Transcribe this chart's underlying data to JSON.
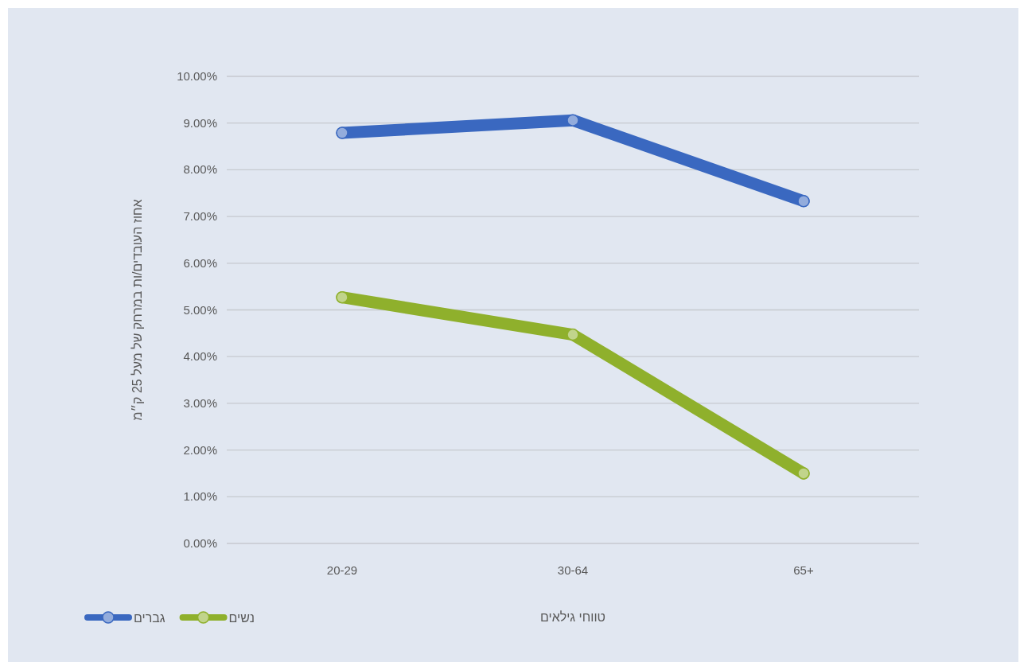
{
  "chart_data": {
    "type": "line",
    "xlabel": "טווחי גילאים",
    "ylabel": "אחוז העובדים/ות במרחק של מעל 25 ק״מ",
    "categories": [
      "20-29",
      "30-64",
      "65+"
    ],
    "series": [
      {
        "name": "גברים",
        "color": "#3a68c0",
        "values": [
          8.79,
          9.06,
          7.33
        ]
      },
      {
        "name": "נשים",
        "color": "#8fb02c",
        "values": [
          5.27,
          4.47,
          1.5
        ]
      }
    ],
    "ylim": [
      0,
      10
    ],
    "yticks": [
      {
        "value": 0,
        "label": "0.00%"
      },
      {
        "value": 1,
        "label": "1.00%"
      },
      {
        "value": 2,
        "label": "2.00%"
      },
      {
        "value": 3,
        "label": "3.00%"
      },
      {
        "value": 4,
        "label": "4.00%"
      },
      {
        "value": 5,
        "label": "5.00%"
      },
      {
        "value": 6,
        "label": "6.00%"
      },
      {
        "value": 7,
        "label": "7.00%"
      },
      {
        "value": 8,
        "label": "8.00%"
      },
      {
        "value": 9,
        "label": "9.00%"
      },
      {
        "value": 10,
        "label": "10.00%"
      }
    ],
    "grid": "y",
    "legend": "bottom left",
    "marker": "circle",
    "line_style": "solid"
  }
}
